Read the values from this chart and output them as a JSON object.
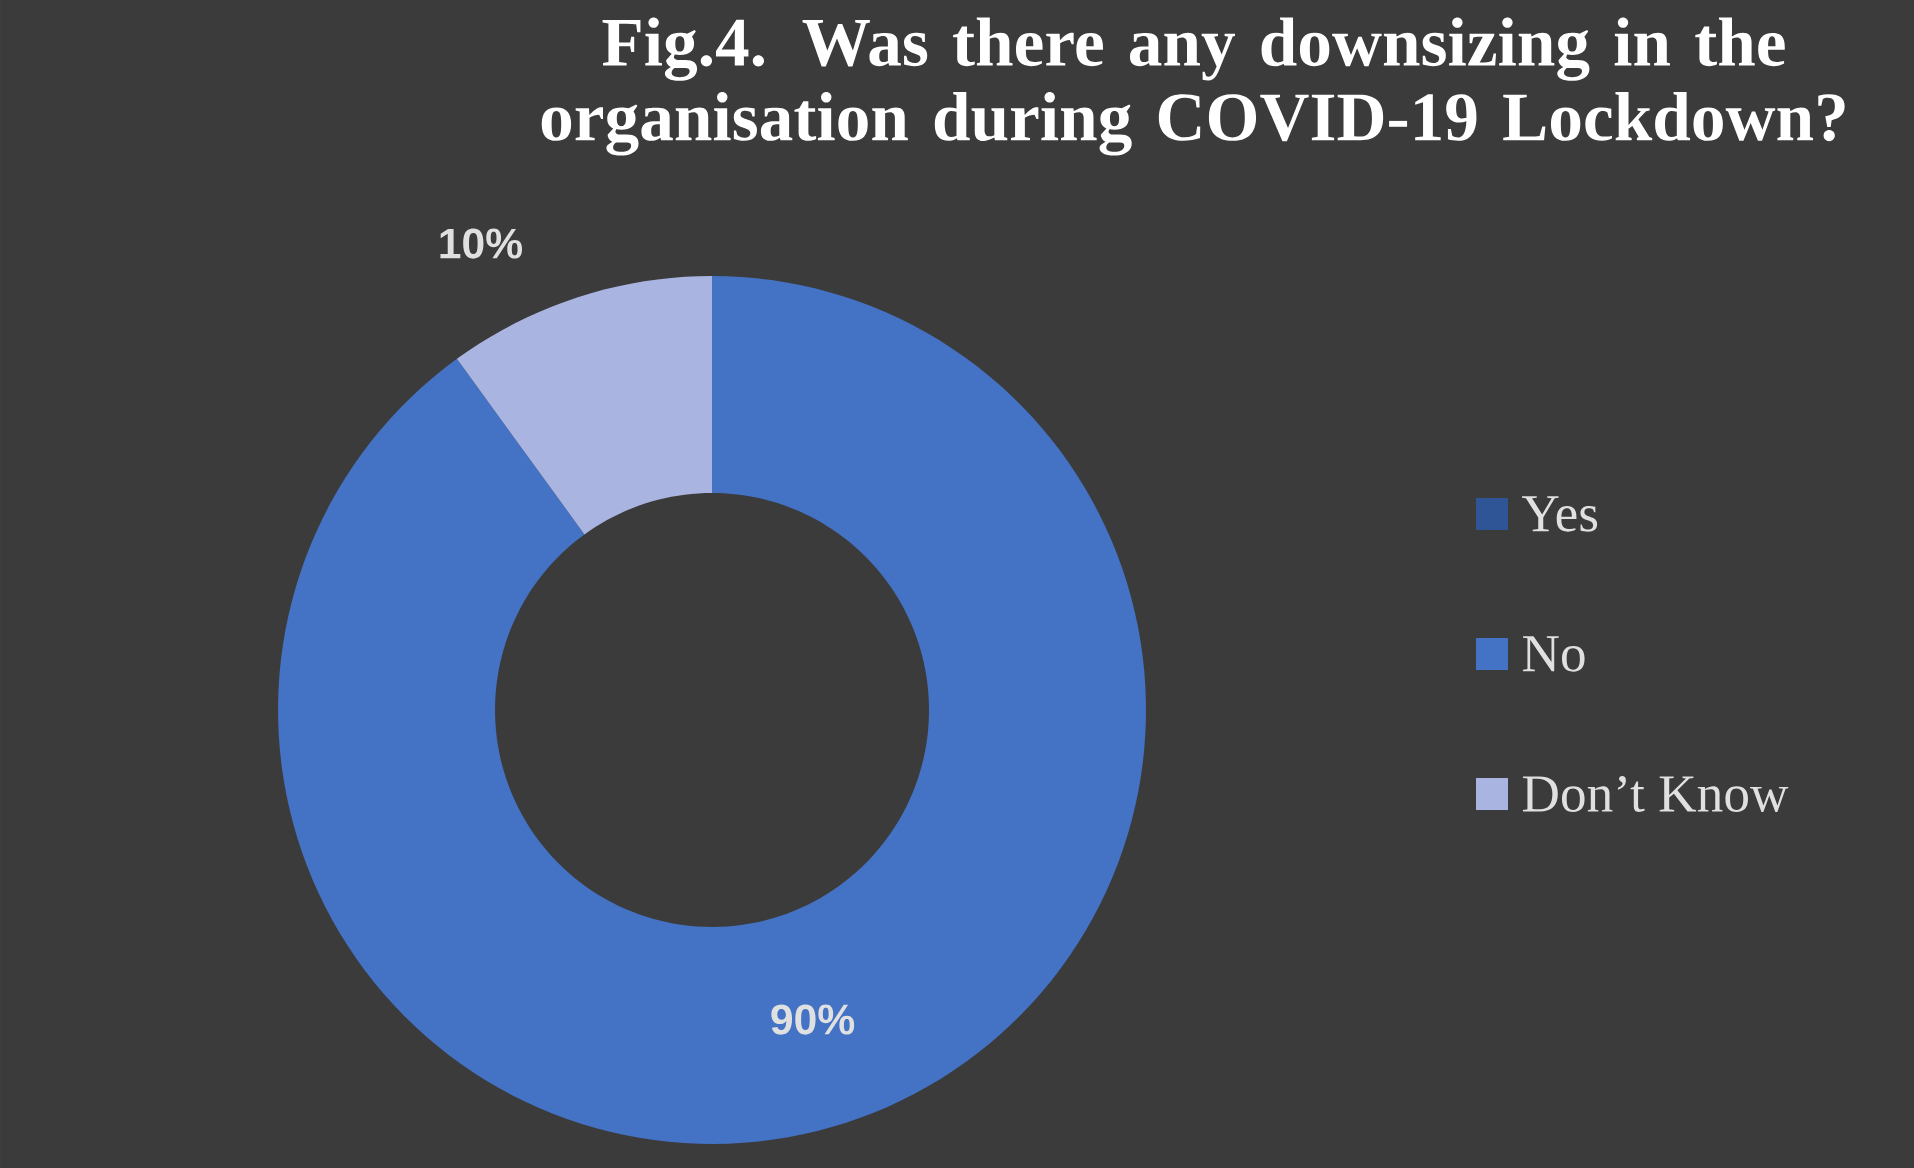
{
  "chart_data": {
    "type": "donut",
    "title": "Fig.4. Was there any downsizing in the organisation during COVID-19 Lockdown?",
    "categories": [
      "Yes",
      "No",
      "Don’t Know"
    ],
    "values": [
      0,
      90,
      10
    ],
    "colors": [
      "#2f5597",
      "#4472c4",
      "#a9b5e0"
    ],
    "value_labels": [
      null,
      "90%",
      "10%"
    ],
    "legend": "right"
  }
}
